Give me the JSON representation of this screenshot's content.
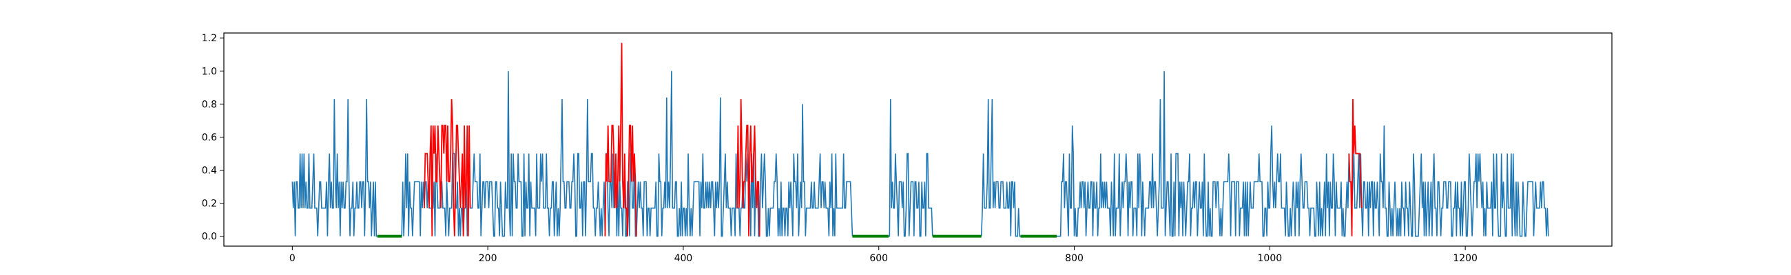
{
  "chart_data": {
    "type": "line",
    "title": "",
    "xlabel": "",
    "ylabel": "",
    "xlim": [
      -70,
      1350
    ],
    "ylim": [
      -0.06,
      1.23
    ],
    "xticks": [
      0,
      200,
      400,
      600,
      800,
      1000,
      1200
    ],
    "xtick_labels": [
      "0",
      "200",
      "400",
      "600",
      "800",
      "1000",
      "1200"
    ],
    "yticks": [
      0.0,
      0.2,
      0.4,
      0.6,
      0.8,
      1.0,
      1.2
    ],
    "ytick_labels": [
      "0.0",
      "0.2",
      "0.4",
      "0.6",
      "0.8",
      "1.0",
      "1.2"
    ],
    "grid": false,
    "legend": "none",
    "series_colors": {
      "signal": "#1f77b4",
      "anomaly": "#ff0000",
      "flat": "#008000"
    },
    "spikes": [
      {
        "x": 43,
        "y": 0.83
      },
      {
        "x": 57,
        "y": 0.83
      },
      {
        "x": 76,
        "y": 0.83
      },
      {
        "x": 221,
        "y": 1.0
      },
      {
        "x": 276,
        "y": 0.83
      },
      {
        "x": 302,
        "y": 0.83
      },
      {
        "x": 383,
        "y": 0.84
      },
      {
        "x": 388,
        "y": 1.0
      },
      {
        "x": 438,
        "y": 0.84
      },
      {
        "x": 522,
        "y": 0.8
      },
      {
        "x": 612,
        "y": 0.83
      },
      {
        "x": 712,
        "y": 0.83
      },
      {
        "x": 716,
        "y": 0.83
      },
      {
        "x": 798,
        "y": 0.67
      },
      {
        "x": 888,
        "y": 0.83
      },
      {
        "x": 892,
        "y": 1.0
      },
      {
        "x": 1002,
        "y": 0.67
      },
      {
        "x": 1117,
        "y": 0.67
      }
    ],
    "zero_segments": [
      {
        "x_start": 87,
        "x_end": 112
      },
      {
        "x_start": 573,
        "x_end": 610
      },
      {
        "x_start": 655,
        "x_end": 705
      },
      {
        "x_start": 745,
        "x_end": 782
      }
    ],
    "anomaly_segments": [
      {
        "x_start": 135,
        "x_end": 182,
        "peak_x": 163,
        "peak_y": 0.83
      },
      {
        "x_start": 320,
        "x_end": 352,
        "peak_x": 337,
        "peak_y": 1.17
      },
      {
        "x_start": 455,
        "x_end": 478,
        "peak_x": 459,
        "peak_y": 0.83
      },
      {
        "x_start": 1081,
        "x_end": 1094,
        "peak_x": 1085,
        "peak_y": 0.83
      }
    ],
    "x_end": 1285
  }
}
